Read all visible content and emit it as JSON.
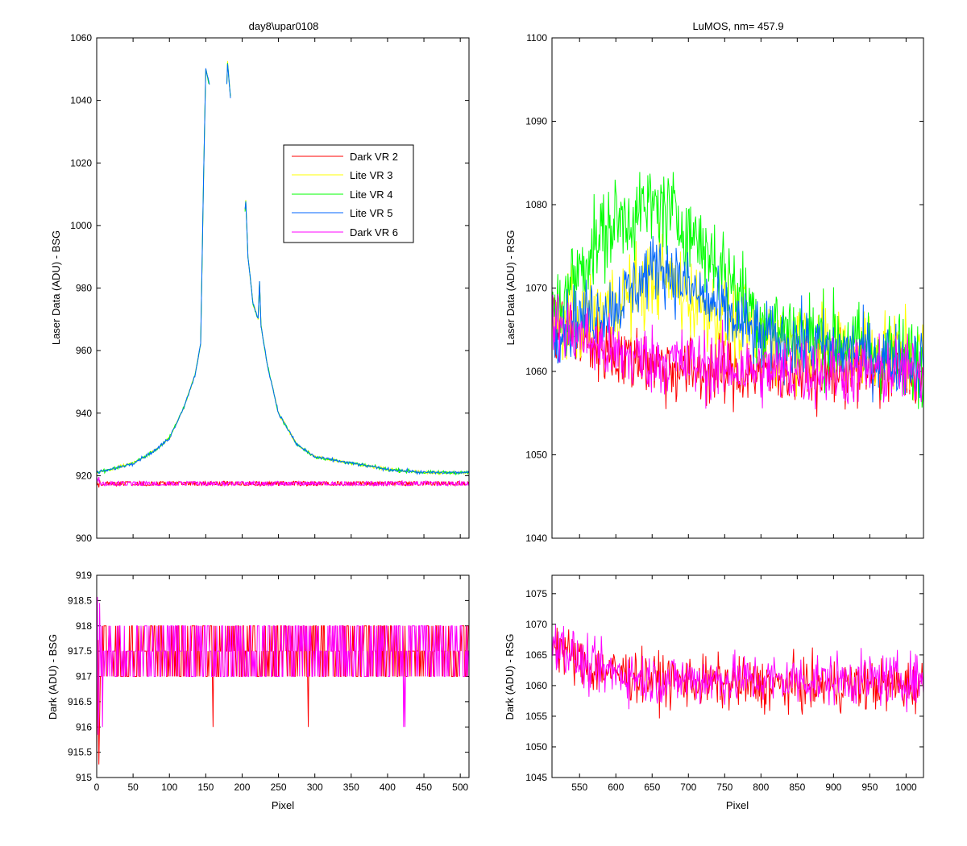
{
  "chart_data": [
    {
      "id": "top-left",
      "type": "line",
      "title": "day8\\upar0108",
      "xlabel": "",
      "ylabel": "Laser Data (ADU) - BSG",
      "xlim": [
        0,
        512
      ],
      "ylim": [
        900,
        1060
      ],
      "xticks": [
        0,
        50,
        100,
        150,
        200,
        250,
        300,
        350,
        400,
        450,
        500
      ],
      "xtick_labels_shown": false,
      "yticks": [
        900,
        920,
        940,
        960,
        980,
        1000,
        1020,
        1040,
        1060
      ],
      "legend_position": "upper-right",
      "series": [
        {
          "name": "Dark VR 2",
          "color": "#ff0000",
          "kind": "dark",
          "baseline": 917.5,
          "noise": 0.7
        },
        {
          "name": "Lite VR 3",
          "color": "#ffff00",
          "kind": "peak",
          "profile": [
            [
              0,
              921
            ],
            [
              20,
              922
            ],
            [
              50,
              924
            ],
            [
              80,
              928
            ],
            [
              100,
              932
            ],
            [
              120,
              942
            ],
            [
              135,
              952
            ],
            [
              143,
              962
            ],
            [
              147,
              1015
            ],
            [
              150,
              1050
            ],
            [
              155,
              1045
            ],
            [
              165,
              null
            ],
            [
              178,
              1039
            ],
            [
              180,
              1052
            ],
            [
              184,
              1041
            ],
            [
              190,
              null
            ],
            [
              203,
              1002
            ],
            [
              205,
              1008
            ],
            [
              208,
              990
            ],
            [
              215,
              975
            ],
            [
              222,
              970
            ],
            [
              224,
              982
            ],
            [
              226,
              968
            ],
            [
              235,
              955
            ],
            [
              250,
              940
            ],
            [
              275,
              930
            ],
            [
              300,
              926
            ],
            [
              325,
              925
            ],
            [
              350,
              924
            ],
            [
              400,
              922
            ],
            [
              450,
              921
            ],
            [
              512,
              921
            ]
          ]
        },
        {
          "name": "Lite VR 4",
          "color": "#00ff00",
          "kind": "peak",
          "profile": [
            [
              0,
              921
            ],
            [
              20,
              922
            ],
            [
              50,
              924
            ],
            [
              80,
              928
            ],
            [
              100,
              932
            ],
            [
              120,
              942
            ],
            [
              135,
              952
            ],
            [
              143,
              962
            ],
            [
              147,
              1015
            ],
            [
              150,
              1050
            ],
            [
              155,
              1045
            ],
            [
              165,
              null
            ],
            [
              178,
              1039
            ],
            [
              180,
              1052
            ],
            [
              184,
              1041
            ],
            [
              190,
              null
            ],
            [
              203,
              1002
            ],
            [
              205,
              1008
            ],
            [
              208,
              990
            ],
            [
              215,
              975
            ],
            [
              222,
              970
            ],
            [
              224,
              982
            ],
            [
              226,
              968
            ],
            [
              235,
              955
            ],
            [
              250,
              940
            ],
            [
              275,
              930
            ],
            [
              300,
              926
            ],
            [
              325,
              925
            ],
            [
              350,
              924
            ],
            [
              400,
              922
            ],
            [
              450,
              921
            ],
            [
              512,
              921
            ]
          ]
        },
        {
          "name": "Lite VR 5",
          "color": "#0066ff",
          "kind": "peak",
          "profile": [
            [
              0,
              921
            ],
            [
              20,
              922
            ],
            [
              50,
              924
            ],
            [
              80,
              928
            ],
            [
              100,
              932
            ],
            [
              120,
              942
            ],
            [
              135,
              952
            ],
            [
              143,
              962
            ],
            [
              147,
              1015
            ],
            [
              150,
              1050
            ],
            [
              155,
              1045
            ],
            [
              165,
              null
            ],
            [
              178,
              1039
            ],
            [
              180,
              1052
            ],
            [
              184,
              1041
            ],
            [
              190,
              null
            ],
            [
              203,
              1002
            ],
            [
              205,
              1008
            ],
            [
              208,
              990
            ],
            [
              215,
              975
            ],
            [
              222,
              970
            ],
            [
              224,
              982
            ],
            [
              226,
              968
            ],
            [
              235,
              955
            ],
            [
              250,
              940
            ],
            [
              275,
              930
            ],
            [
              300,
              926
            ],
            [
              325,
              925
            ],
            [
              350,
              924
            ],
            [
              400,
              922
            ],
            [
              450,
              921
            ],
            [
              512,
              921
            ]
          ]
        },
        {
          "name": "Dark VR 6",
          "color": "#ff00ff",
          "kind": "dark",
          "baseline": 917.5,
          "noise": 0.7
        }
      ]
    },
    {
      "id": "top-right",
      "type": "line",
      "title": "LuMOS, nm= 457.9",
      "xlabel": "",
      "ylabel": "Laser Data (ADU) - RSG",
      "xlim": [
        512,
        1024
      ],
      "ylim": [
        1040,
        1100
      ],
      "xticks": [
        550,
        600,
        650,
        700,
        750,
        800,
        850,
        900,
        950,
        1000
      ],
      "xtick_labels_shown": false,
      "yticks": [
        1040,
        1050,
        1060,
        1070,
        1080,
        1090,
        1100
      ],
      "series": [
        {
          "name": "Dark VR 2",
          "color": "#ff0000",
          "kind": "noisy",
          "mean": [
            [
              512,
              1066
            ],
            [
              600,
              1062
            ],
            [
              700,
              1060
            ],
            [
              800,
              1060
            ],
            [
              1024,
              1060
            ]
          ],
          "amp": 4
        },
        {
          "name": "Lite VR 3",
          "color": "#ffff00",
          "kind": "noisy",
          "mean": [
            [
              512,
              1065
            ],
            [
              600,
              1068
            ],
            [
              660,
              1072
            ],
            [
              700,
              1069
            ],
            [
              800,
              1064
            ],
            [
              1024,
              1062
            ]
          ],
          "amp": 5
        },
        {
          "name": "Lite VR 4",
          "color": "#00ff00",
          "kind": "noisy",
          "mean": [
            [
              512,
              1066
            ],
            [
              560,
              1074
            ],
            [
              600,
              1078
            ],
            [
              660,
              1080
            ],
            [
              700,
              1077
            ],
            [
              750,
              1072
            ],
            [
              800,
              1066
            ],
            [
              1024,
              1061
            ]
          ],
          "amp": 5
        },
        {
          "name": "Lite VR 5",
          "color": "#0066ff",
          "kind": "noisy",
          "mean": [
            [
              512,
              1065
            ],
            [
              600,
              1068
            ],
            [
              660,
              1073
            ],
            [
              700,
              1070
            ],
            [
              800,
              1064
            ],
            [
              1024,
              1061
            ]
          ],
          "amp": 4
        },
        {
          "name": "Dark VR 6",
          "color": "#ff00ff",
          "kind": "noisy",
          "mean": [
            [
              512,
              1066
            ],
            [
              600,
              1062
            ],
            [
              700,
              1061
            ],
            [
              800,
              1060
            ],
            [
              1024,
              1060
            ]
          ],
          "amp": 4
        }
      ]
    },
    {
      "id": "bottom-left",
      "type": "line",
      "title": "",
      "xlabel": "Pixel",
      "ylabel": "Dark (ADU) - BSG",
      "xlim": [
        0,
        512
      ],
      "ylim": [
        915,
        919
      ],
      "xticks": [
        0,
        50,
        100,
        150,
        200,
        250,
        300,
        350,
        400,
        450,
        500
      ],
      "xtick_labels_shown": true,
      "yticks": [
        915,
        915.5,
        916,
        916.5,
        917,
        917.5,
        918,
        918.5,
        919
      ],
      "series": [
        {
          "name": "Dark VR 2",
          "color": "#ff0000",
          "kind": "discrete",
          "levels": [
            917,
            917.5,
            918
          ],
          "dips": [
            [
              160,
              916
            ],
            [
              291,
              916
            ]
          ]
        },
        {
          "name": "Dark VR 6",
          "color": "#ff00ff",
          "kind": "discrete",
          "levels": [
            917,
            917.5,
            918
          ],
          "dips": [
            [
              8,
              916
            ],
            [
              422,
              916
            ],
            [
              424,
              916
            ]
          ]
        }
      ]
    },
    {
      "id": "bottom-right",
      "type": "line",
      "title": "",
      "xlabel": "Pixel",
      "ylabel": "Dark (ADU) - RSG",
      "xlim": [
        512,
        1024
      ],
      "ylim": [
        1045,
        1078
      ],
      "xticks": [
        550,
        600,
        650,
        700,
        750,
        800,
        850,
        900,
        950,
        1000
      ],
      "xtick_labels_shown": true,
      "yticks": [
        1045,
        1050,
        1055,
        1060,
        1065,
        1070,
        1075
      ],
      "series": [
        {
          "name": "Dark VR 2",
          "color": "#ff0000",
          "kind": "noisy",
          "mean": [
            [
              512,
              1067
            ],
            [
              560,
              1063
            ],
            [
              650,
              1061
            ],
            [
              800,
              1060
            ],
            [
              1024,
              1060
            ]
          ],
          "amp": 4
        },
        {
          "name": "Dark VR 6",
          "color": "#ff00ff",
          "kind": "noisy",
          "mean": [
            [
              512,
              1068
            ],
            [
              560,
              1063
            ],
            [
              650,
              1061
            ],
            [
              800,
              1061
            ],
            [
              1024,
              1061
            ]
          ],
          "amp": 4
        }
      ]
    }
  ]
}
